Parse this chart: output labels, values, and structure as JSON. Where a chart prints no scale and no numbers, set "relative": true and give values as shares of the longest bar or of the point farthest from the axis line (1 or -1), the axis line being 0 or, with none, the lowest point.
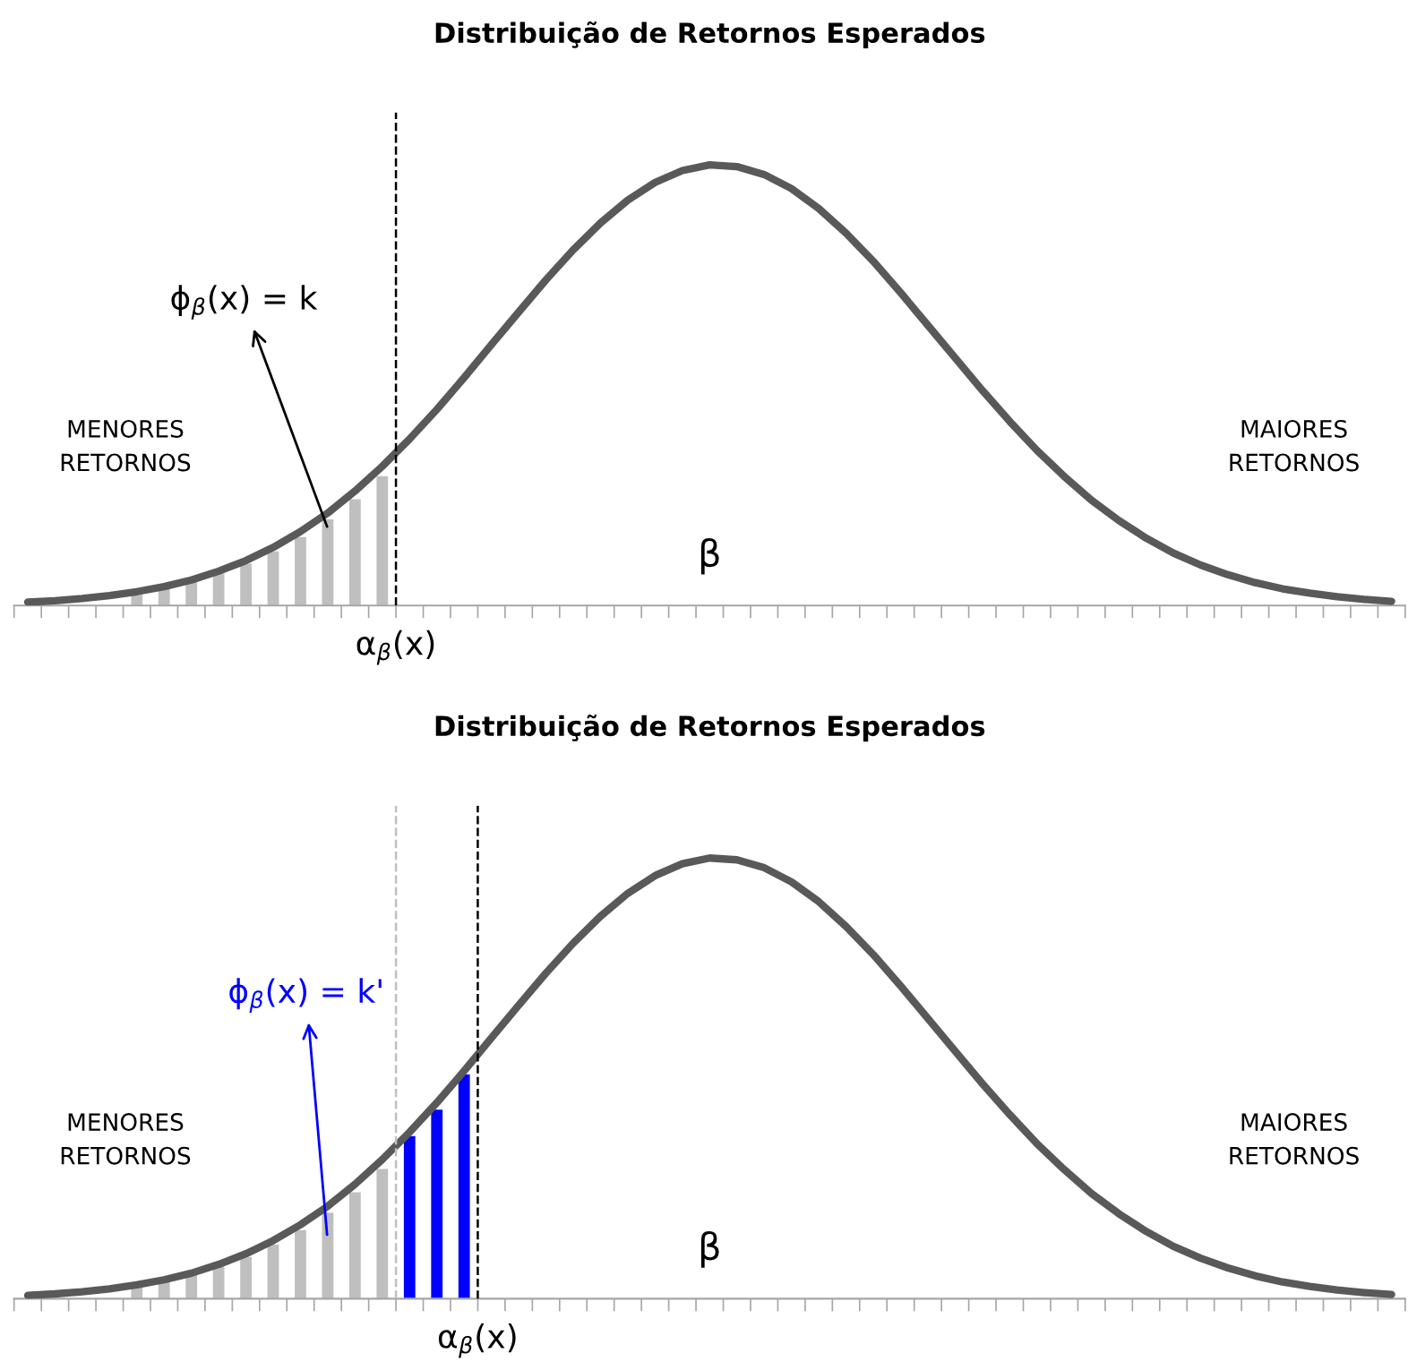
{
  "chart_data": [
    {
      "type": "line",
      "title": "Distribuição de Retornos Esperados",
      "relative": true,
      "categories": [
        null,
        null,
        null,
        null,
        null,
        null,
        null,
        null,
        null,
        null,
        null,
        null,
        null,
        null,
        null,
        null,
        null,
        null,
        null,
        null,
        null,
        null,
        null,
        null,
        null,
        null,
        null,
        null,
        null,
        null,
        null,
        null,
        null,
        null,
        null,
        null,
        null,
        null,
        null,
        null,
        null,
        null,
        null,
        null,
        null,
        null,
        null,
        null,
        null,
        null,
        null
      ],
      "series": [
        {
          "color": "#595959",
          "values": [
            0.0076,
            0.011,
            0.016,
            0.0226,
            0.0315,
            0.043,
            0.058,
            0.078,
            0.102,
            0.132,
            0.168,
            0.21,
            0.26,
            0.316,
            0.378,
            0.445,
            0.517,
            0.592,
            0.666,
            0.739,
            0.807,
            0.868,
            0.92,
            0.96,
            0.987,
            1,
            0.996,
            0.978,
            0.946,
            0.901,
            0.845,
            0.781,
            0.71,
            0.636,
            0.562,
            0.488,
            0.418,
            0.352,
            0.293,
            0.239,
            0.193,
            0.153,
            0.119,
            0.092,
            0.07,
            0.052,
            0.038,
            0.028,
            0.02,
            0.014,
            0.0096
          ]
        }
      ],
      "annotations": [
        "ϕ$_{β}$(x) = k",
        "β",
        "MENORES\nRETORNOS",
        "MAIORES\nRETORNOS",
        "α$_{β}$(x)"
      ]
    },
    {
      "type": "bar",
      "relative": true,
      "categories": [
        null,
        null,
        null,
        null,
        null,
        null,
        null,
        null,
        null,
        null
      ],
      "series": [
        {
          "color": "#bfbfbf",
          "values": [
            0.098,
            0.136,
            0.183,
            0.247,
            0.322,
            0.417,
            0.529,
            0.664,
            0.82,
            1
          ]
        }
      ]
    },
    {
      "type": "line",
      "title": "Distribuição de Retornos Esperados",
      "relative": true,
      "categories": [
        null,
        null,
        null,
        null,
        null,
        null,
        null,
        null,
        null,
        null,
        null,
        null,
        null,
        null,
        null,
        null,
        null,
        null,
        null,
        null,
        null,
        null,
        null,
        null,
        null,
        null,
        null,
        null,
        null,
        null,
        null,
        null,
        null,
        null,
        null,
        null,
        null,
        null,
        null,
        null,
        null,
        null,
        null,
        null,
        null,
        null,
        null,
        null,
        null,
        null,
        null
      ],
      "series": [
        {
          "color": "#595959",
          "values": [
            0.0076,
            0.011,
            0.016,
            0.0226,
            0.0315,
            0.043,
            0.058,
            0.078,
            0.102,
            0.132,
            0.168,
            0.21,
            0.26,
            0.316,
            0.378,
            0.445,
            0.517,
            0.592,
            0.666,
            0.739,
            0.807,
            0.868,
            0.92,
            0.96,
            0.987,
            1,
            0.996,
            0.978,
            0.946,
            0.901,
            0.845,
            0.781,
            0.71,
            0.636,
            0.562,
            0.488,
            0.418,
            0.352,
            0.293,
            0.239,
            0.193,
            0.153,
            0.119,
            0.092,
            0.07,
            0.052,
            0.038,
            0.028,
            0.02,
            0.014,
            0.0096
          ]
        }
      ],
      "annotations": [
        "ϕ$_{β}$(x) = k'",
        "β",
        "MENORES\nRETORNOS",
        "MAIORES\nRETORNOS",
        "α$_{β}$(x)"
      ]
    },
    {
      "type": "bar",
      "relative": true,
      "categories": [
        null,
        null,
        null,
        null,
        null,
        null,
        null,
        null,
        null,
        null,
        null,
        null,
        null
      ],
      "series": [
        {
          "colors": [
            "#bfbfbf",
            "#bfbfbf",
            "#bfbfbf",
            "#bfbfbf",
            "#bfbfbf",
            "#bfbfbf",
            "#bfbfbf",
            "#bfbfbf",
            "#bfbfbf",
            "#bfbfbf",
            "#0000ff",
            "#0000ff",
            "#0000ff"
          ],
          "values": [
            0.057,
            0.078,
            0.106,
            0.143,
            0.186,
            0.241,
            0.306,
            0.384,
            0.475,
            0.578,
            0.725,
            0.843,
            1
          ]
        }
      ]
    }
  ]
}
